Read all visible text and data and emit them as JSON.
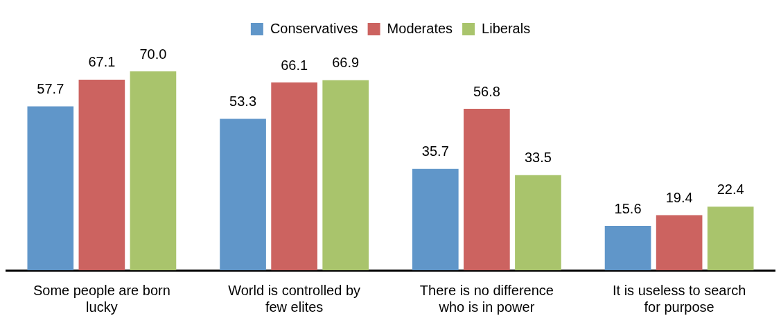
{
  "chart_data": {
    "type": "bar",
    "categories": [
      "Some people are born lucky",
      "World is controlled by few elites",
      "There is no difference who is in power",
      "It is useless to search for purpose"
    ],
    "series": [
      {
        "name": "Conservatives",
        "color": "#6096c9",
        "values": [
          57.7,
          53.3,
          35.7,
          15.6
        ],
        "value_labels": [
          "57.7",
          "53.3",
          "35.7",
          "15.6"
        ]
      },
      {
        "name": "Moderates",
        "color": "#cc6360",
        "values": [
          67.1,
          66.1,
          56.8,
          19.4
        ],
        "value_labels": [
          "67.1",
          "66.1",
          "56.8",
          "19.4"
        ]
      },
      {
        "name": "Liberals",
        "color": "#a9c46c",
        "values": [
          70.0,
          66.9,
          33.5,
          22.4
        ],
        "value_labels": [
          "70.0",
          "66.9",
          "33.5",
          "22.4"
        ]
      }
    ],
    "legend": "top",
    "grid": false
  }
}
